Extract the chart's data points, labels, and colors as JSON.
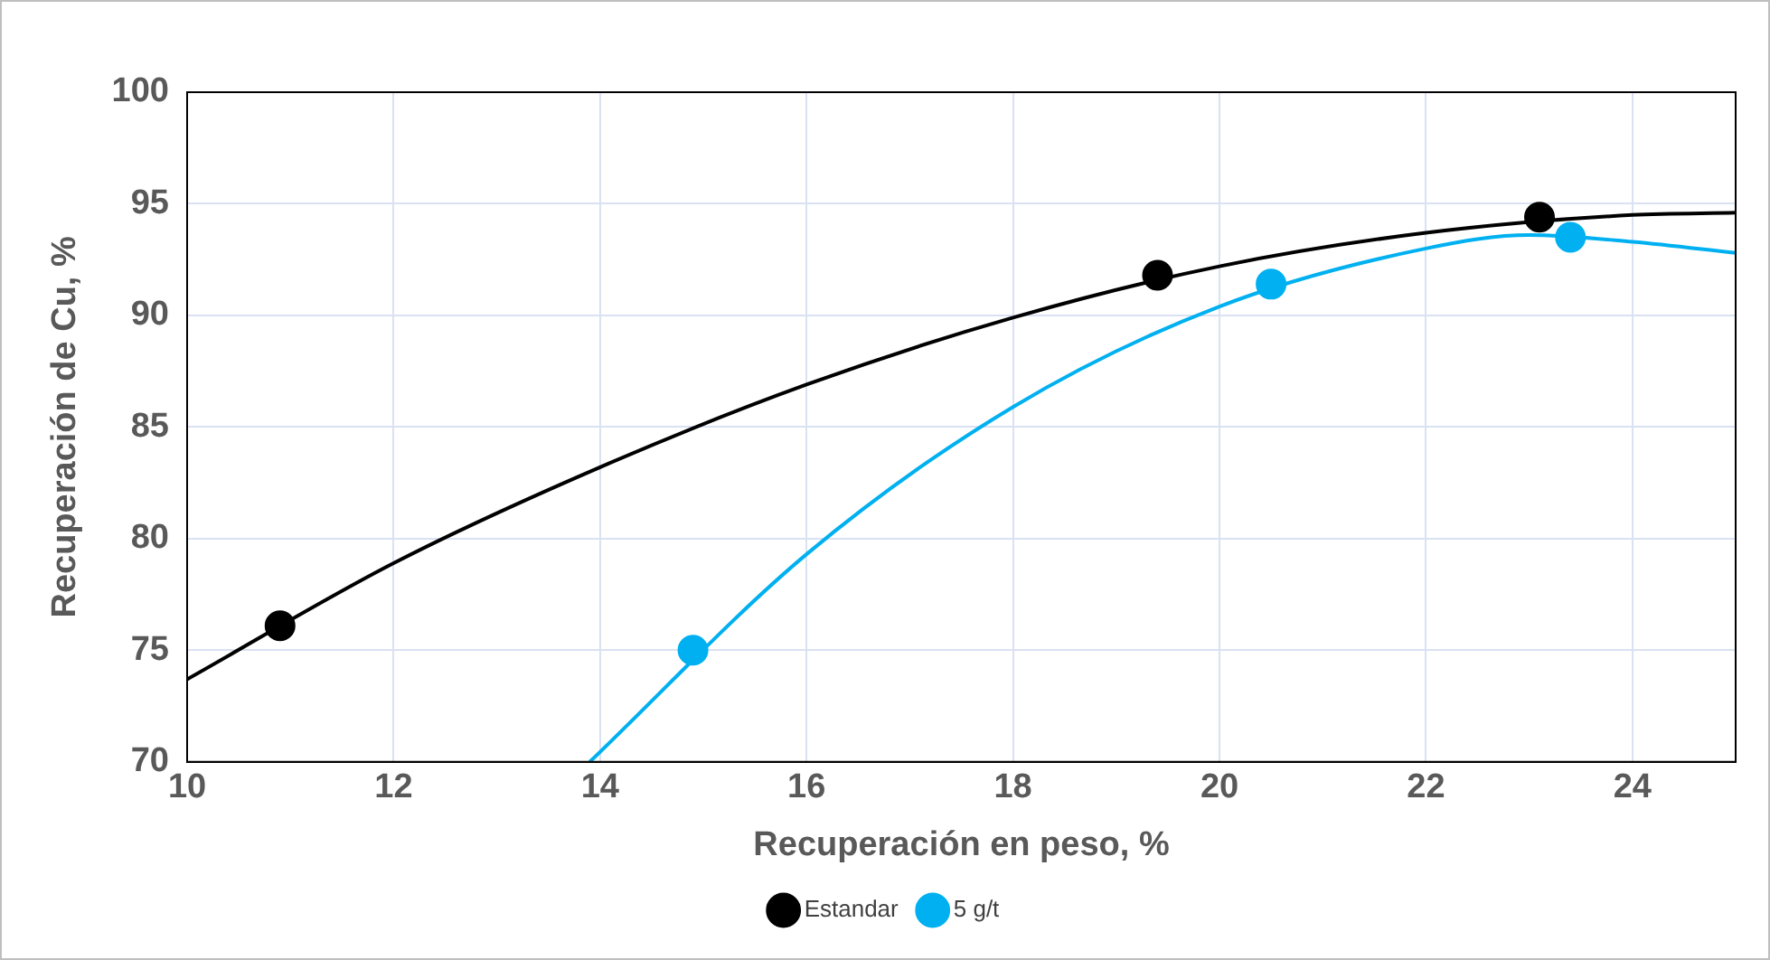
{
  "chart_data": {
    "type": "scatter",
    "xlabel": "Recuperación en peso, %",
    "ylabel": "Recuperación de Cu, %",
    "xlim": [
      10,
      25
    ],
    "xticks": [
      10,
      12,
      14,
      16,
      18,
      20,
      22,
      24
    ],
    "ylim": [
      70,
      100
    ],
    "yticks": [
      70,
      75,
      80,
      85,
      90,
      95,
      100
    ],
    "grid": true,
    "legend": "bottom",
    "marker": "circle",
    "series": [
      {
        "name": "Estandar",
        "color": "#000000",
        "x": [
          10.9,
          19.4,
          23.1
        ],
        "values": [
          76.1,
          91.8,
          94.4
        ]
      },
      {
        "name": "5 g/t",
        "color": "#00b0f0",
        "x": [
          14.9,
          20.5,
          23.4
        ],
        "values": [
          75.0,
          91.4,
          93.5
        ]
      },
      {
        "type": "line",
        "color": "#000000",
        "marker": "none",
        "x": [
          10,
          12,
          14,
          16,
          18,
          20,
          22,
          24,
          25
        ],
        "values": [
          73.7,
          78.9,
          83.2,
          86.9,
          89.9,
          92.2,
          93.7,
          94.5,
          94.6
        ]
      },
      {
        "type": "line",
        "color": "#00b0f0",
        "marker": "none",
        "x": [
          13.9,
          16,
          18,
          20,
          22,
          23,
          24,
          25
        ],
        "values": [
          70,
          79.3,
          85.9,
          90.4,
          93.0,
          93.6,
          93.3,
          92.8
        ]
      }
    ]
  }
}
